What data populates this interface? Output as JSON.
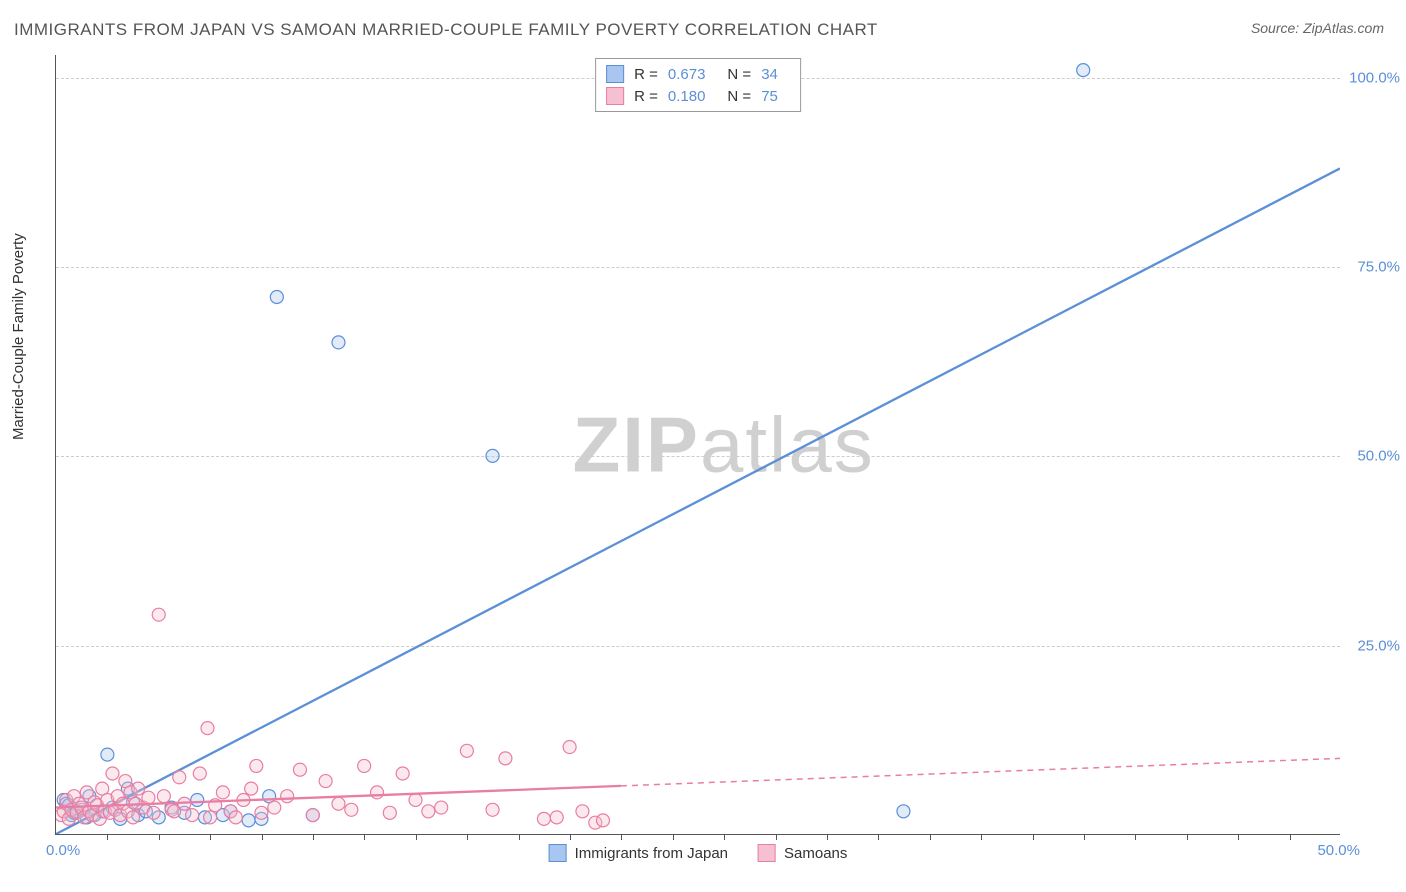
{
  "title": "IMMIGRANTS FROM JAPAN VS SAMOAN MARRIED-COUPLE FAMILY POVERTY CORRELATION CHART",
  "source": "Source: ZipAtlas.com",
  "ylabel": "Married-Couple Family Poverty",
  "watermark_zip": "ZIP",
  "watermark_atlas": "atlas",
  "chart": {
    "type": "scatter",
    "xlim": [
      0,
      50
    ],
    "ylim": [
      0,
      103
    ],
    "background_color": "#ffffff",
    "grid_color": "#cccccc",
    "axis_color": "#555555",
    "tick_label_color": "#5b8fd6",
    "tick_label_fontsize": 15,
    "y_ticks": [
      25,
      50,
      75,
      100
    ],
    "y_tick_labels": [
      "25.0%",
      "50.0%",
      "75.0%",
      "100.0%"
    ],
    "x_start_label": "0.0%",
    "x_end_label": "50.0%",
    "x_minor_tick_step": 2,
    "x_minor_ticks": [
      2,
      4,
      6,
      8,
      10,
      12,
      14,
      16,
      18,
      20,
      22,
      24,
      26,
      28,
      30,
      32,
      34,
      36,
      38,
      40,
      42,
      44,
      46,
      48
    ],
    "marker_radius": 6.5,
    "marker_fill_opacity": 0.35,
    "marker_stroke_width": 1.2,
    "series": [
      {
        "name": "Immigrants from Japan",
        "color_fill": "#a8c6f0",
        "color_stroke": "#5b8fd6",
        "R": "0.673",
        "N": "34",
        "regression": {
          "x1": 0,
          "y1": 0,
          "x2": 50,
          "y2": 88,
          "solid_until_x": 50,
          "stroke_width": 2.3
        },
        "points": [
          [
            0.3,
            4.5
          ],
          [
            0.4,
            4
          ],
          [
            0.5,
            3.8
          ],
          [
            0.6,
            2.5
          ],
          [
            0.7,
            2.8
          ],
          [
            0.8,
            3
          ],
          [
            1.0,
            3.2
          ],
          [
            1.2,
            2.2
          ],
          [
            1.3,
            5
          ],
          [
            1.5,
            2.5
          ],
          [
            1.8,
            3
          ],
          [
            2.0,
            10.5
          ],
          [
            2.2,
            3.5
          ],
          [
            2.5,
            2
          ],
          [
            2.8,
            6
          ],
          [
            3.0,
            4.2
          ],
          [
            3.2,
            2.5
          ],
          [
            3.5,
            3
          ],
          [
            4.0,
            2.2
          ],
          [
            4.5,
            3.5
          ],
          [
            5.0,
            2.8
          ],
          [
            5.5,
            4.5
          ],
          [
            6.5,
            2.5
          ],
          [
            7.5,
            1.8
          ],
          [
            8.0,
            2
          ],
          [
            8.3,
            5
          ],
          [
            8.6,
            71
          ],
          [
            10,
            2.5
          ],
          [
            11,
            65
          ],
          [
            17,
            50
          ],
          [
            33,
            3
          ],
          [
            40,
            101
          ],
          [
            5.8,
            2.2
          ],
          [
            6.8,
            3
          ]
        ]
      },
      {
        "name": "Samoans",
        "color_fill": "#f5c0cf",
        "color_stroke": "#e87ea3",
        "R": "0.180",
        "N": "75",
        "regression": {
          "x1": 0,
          "y1": 3.5,
          "x2": 50,
          "y2": 10,
          "solid_until_x": 22,
          "stroke_width": 2.3
        },
        "points": [
          [
            0.2,
            2.5
          ],
          [
            0.3,
            3
          ],
          [
            0.4,
            4.5
          ],
          [
            0.5,
            2
          ],
          [
            0.6,
            3.2
          ],
          [
            0.7,
            5
          ],
          [
            0.8,
            2.8
          ],
          [
            0.9,
            4
          ],
          [
            1.0,
            3.5
          ],
          [
            1.1,
            2.2
          ],
          [
            1.2,
            5.5
          ],
          [
            1.3,
            3
          ],
          [
            1.4,
            2.5
          ],
          [
            1.5,
            4.2
          ],
          [
            1.6,
            3.8
          ],
          [
            1.7,
            2
          ],
          [
            1.8,
            6
          ],
          [
            1.9,
            3
          ],
          [
            2.0,
            4.5
          ],
          [
            2.1,
            2.8
          ],
          [
            2.2,
            8
          ],
          [
            2.3,
            3.2
          ],
          [
            2.4,
            5
          ],
          [
            2.5,
            2.5
          ],
          [
            2.6,
            4
          ],
          [
            2.7,
            7
          ],
          [
            2.8,
            3
          ],
          [
            2.9,
            5.5
          ],
          [
            3.0,
            2.2
          ],
          [
            3.2,
            6
          ],
          [
            3.4,
            3.5
          ],
          [
            3.6,
            4.8
          ],
          [
            3.8,
            2.8
          ],
          [
            4.0,
            29
          ],
          [
            4.2,
            5
          ],
          [
            4.5,
            3.2
          ],
          [
            4.8,
            7.5
          ],
          [
            5.0,
            4
          ],
          [
            5.3,
            2.5
          ],
          [
            5.6,
            8
          ],
          [
            5.9,
            14
          ],
          [
            6.2,
            3.8
          ],
          [
            6.5,
            5.5
          ],
          [
            6.8,
            3
          ],
          [
            7.0,
            2.2
          ],
          [
            7.3,
            4.5
          ],
          [
            7.6,
            6
          ],
          [
            8.0,
            2.8
          ],
          [
            8.5,
            3.5
          ],
          [
            9.0,
            5
          ],
          [
            9.5,
            8.5
          ],
          [
            10,
            2.5
          ],
          [
            10.5,
            7
          ],
          [
            11,
            4
          ],
          [
            11.5,
            3.2
          ],
          [
            12,
            9
          ],
          [
            12.5,
            5.5
          ],
          [
            13,
            2.8
          ],
          [
            13.5,
            8
          ],
          [
            14,
            4.5
          ],
          [
            14.5,
            3
          ],
          [
            15,
            3.5
          ],
          [
            16,
            11
          ],
          [
            17,
            3.2
          ],
          [
            17.5,
            10
          ],
          [
            19,
            2
          ],
          [
            19.5,
            2.2
          ],
          [
            20,
            11.5
          ],
          [
            20.5,
            3
          ],
          [
            21,
            1.5
          ],
          [
            21.3,
            1.8
          ],
          [
            6.0,
            2.2
          ],
          [
            7.8,
            9
          ],
          [
            4.6,
            3
          ],
          [
            3.1,
            4
          ]
        ]
      }
    ]
  },
  "legend_labels": {
    "R": "R =",
    "N": "N ="
  }
}
